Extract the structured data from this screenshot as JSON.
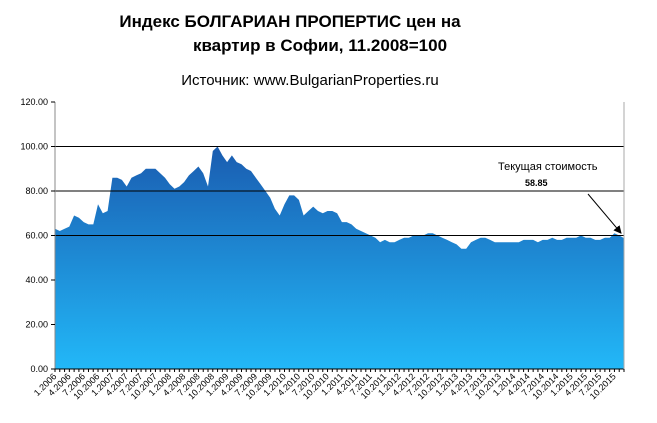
{
  "chart_data": {
    "type": "area",
    "title_line1": "Индекс БОЛГАРИАН ПРОПЕРТИС цен на",
    "title_line2": "квартир в Софии, 11.2008=100",
    "subtitle": "Источник: www.BulgarianProperties.ru",
    "ylim": [
      0,
      120
    ],
    "yticks": [
      "0.00",
      "20.00",
      "40.00",
      "60.00",
      "80.00",
      "100.00",
      "120.00"
    ],
    "gridlines": [
      60,
      80,
      100
    ],
    "start": "1.2006",
    "xtick_labels": [
      "1.2006",
      "4.2006",
      "7.2006",
      "10.2006",
      "1.2007",
      "4.2007",
      "7.2007",
      "10.2007",
      "1.2008",
      "4.2008",
      "7.2008",
      "10.2008",
      "1.2009",
      "4.2009",
      "7.2009",
      "10.2009",
      "1.2010",
      "4.2010",
      "7.2010",
      "10.2010",
      "1.2011",
      "4.2011",
      "7.2011",
      "10.2011",
      "1.2012",
      "4.2012",
      "7.2012",
      "10.2012",
      "1.2013",
      "4.2013",
      "7.2013",
      "10.2013",
      "1.2014",
      "4.2014",
      "7.2014",
      "10.2014",
      "1.2015",
      "4.2015",
      "7.2015",
      "10.2015"
    ],
    "values": [
      63,
      62,
      63,
      64,
      69,
      68,
      66,
      65,
      65,
      74,
      70,
      71,
      86,
      86,
      85,
      82,
      86,
      87,
      88,
      90,
      90,
      90,
      88,
      86,
      83,
      81,
      82,
      84,
      87,
      89,
      91,
      88,
      82,
      98,
      100,
      96,
      93,
      96,
      93,
      92,
      90,
      89,
      86,
      83,
      80,
      77,
      72,
      69,
      74,
      78,
      78,
      76,
      69,
      71,
      73,
      71,
      70,
      71,
      71,
      70,
      66,
      66,
      65,
      63,
      62,
      61,
      60,
      59,
      57,
      58,
      57,
      57,
      58,
      59,
      59,
      60,
      60,
      60,
      61,
      61,
      60,
      59,
      58,
      57,
      56,
      54,
      54,
      57,
      58,
      59,
      59,
      58,
      57,
      57,
      57,
      57,
      57,
      57,
      58,
      58,
      58,
      57,
      58,
      58,
      59,
      58,
      58,
      59,
      59,
      59,
      60,
      59,
      59,
      58,
      58,
      59,
      59,
      61,
      60,
      58.85
    ],
    "annotation": {
      "label": "Текущая стоимость",
      "value": "58.85"
    },
    "colors": {
      "fill_top": "#1a5cb0",
      "fill_bottom": "#22b8f8"
    }
  }
}
